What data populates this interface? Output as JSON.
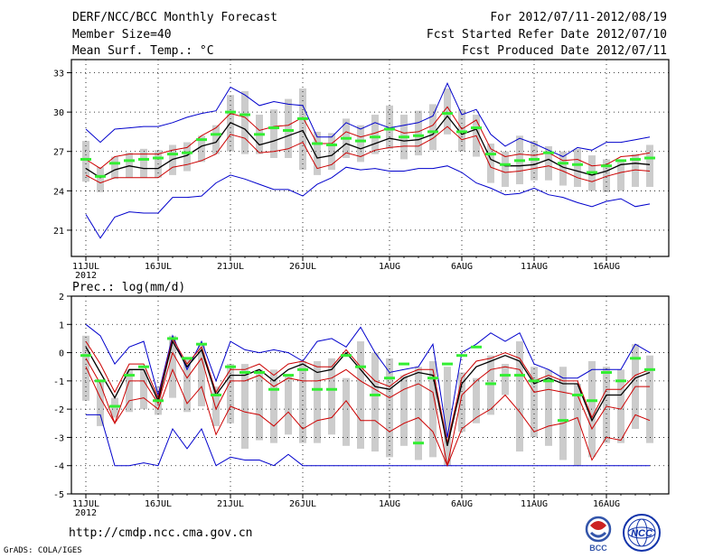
{
  "header": {
    "title": "DERF/NCC/BCC Monthly Forecast",
    "member_size": "Member Size=40",
    "variable": "Mean Surf. Temp.: °C",
    "period": "For 2012/07/11-2012/08/19",
    "started": "Fcst Started Refer Date 2012/07/10",
    "produced": "Fcst Produced Date 2012/07/11"
  },
  "footer": {
    "url": "http://cmdp.ncc.cma.gov.cn",
    "grads": "GrADS: COLA/IGES",
    "logo_bcc": "BCC",
    "logo_ncc": "NCC"
  },
  "colors": {
    "box": "#cccccc",
    "mean": "#33ee33",
    "outer": "#0000cc",
    "inner": "#cc0000",
    "median": "#000000"
  },
  "chart_data": [
    {
      "type": "box",
      "title": "Mean Surf. Temp.: °C",
      "x_tick_labels": [
        "11JUL",
        "16JUL",
        "21JUL",
        "26JUL",
        "1AUG",
        "6AUG",
        "11AUG",
        "16AUG"
      ],
      "x_tick_days": [
        1,
        6,
        11,
        16,
        22,
        27,
        32,
        37
      ],
      "x_year_label": "2012",
      "y_ticks": [
        21,
        24,
        27,
        30,
        33
      ],
      "ylim": [
        19,
        34
      ],
      "days": 40,
      "box_top": [
        27.8,
        25.8,
        26.6,
        26.9,
        27.2,
        27.1,
        27.5,
        27.7,
        28.2,
        29.0,
        31.3,
        31.6,
        29.8,
        30.2,
        31.0,
        31.8,
        28.5,
        28.4,
        29.5,
        29.0,
        29.8,
        30.5,
        29.8,
        30.1,
        30.6,
        31.8,
        30.2,
        29.8,
        27.6,
        27.0,
        28.2,
        27.8,
        27.4,
        27.0,
        27.2,
        26.7,
        26.4,
        26.2,
        26.8,
        27.5
      ],
      "box_bottom": [
        24.7,
        23.9,
        24.9,
        25.0,
        25.0,
        25.0,
        25.2,
        25.5,
        26.2,
        26.8,
        27.0,
        26.8,
        26.8,
        26.5,
        26.5,
        25.6,
        25.2,
        25.6,
        26.5,
        26.2,
        26.8,
        27.2,
        26.4,
        26.7,
        27.1,
        28.3,
        27.0,
        26.6,
        24.6,
        24.3,
        24.5,
        24.8,
        24.8,
        24.4,
        24.3,
        24.0,
        23.9,
        24.0,
        24.3,
        24.3
      ],
      "box_low": [
        24.2,
        23.6,
        24.6,
        24.7,
        24.7,
        24.7,
        24.9,
        25.2,
        25.9,
        26.5,
        26.7,
        26.5,
        26.5,
        26.2,
        26.2,
        25.3,
        24.9,
        25.3,
        26.2,
        25.9,
        26.5,
        26.9,
        26.1,
        26.4,
        26.8,
        28.0,
        26.7,
        26.3,
        24.3,
        24.0,
        24.2,
        24.5,
        24.5,
        24.1,
        24.0,
        23.7,
        23.6,
        23.7,
        24.0,
        24.0
      ],
      "box_high": [
        28.1,
        26.0,
        26.9,
        27.2,
        27.5,
        27.4,
        27.8,
        28.0,
        28.5,
        29.3,
        31.6,
        31.9,
        30.1,
        30.5,
        31.3,
        32.1,
        28.8,
        28.7,
        29.8,
        29.3,
        30.1,
        30.8,
        30.1,
        30.4,
        30.9,
        32.1,
        30.5,
        30.1,
        27.9,
        27.3,
        28.5,
        28.1,
        27.7,
        27.3,
        27.5,
        27.0,
        26.7,
        26.5,
        27.1,
        27.8
      ],
      "series": [
        {
          "name": "max",
          "color_key": "outer",
          "values": [
            28.7,
            27.7,
            28.7,
            28.8,
            28.9,
            28.9,
            29.2,
            29.6,
            29.9,
            30.1,
            31.9,
            31.3,
            30.5,
            30.8,
            30.6,
            30.5,
            28.1,
            28.1,
            29.2,
            28.7,
            29.2,
            28.8,
            29.0,
            29.2,
            29.7,
            32.2,
            29.8,
            30.2,
            28.3,
            27.4,
            28.0,
            27.6,
            27.1,
            26.6,
            27.3,
            27.1,
            27.7,
            27.7,
            27.9,
            28.1
          ]
        },
        {
          "name": "q75",
          "color_key": "inner",
          "values": [
            26.4,
            25.7,
            26.6,
            26.8,
            26.8,
            26.8,
            27.1,
            27.3,
            28.2,
            28.8,
            29.9,
            29.6,
            28.6,
            28.9,
            29.0,
            29.6,
            27.6,
            27.6,
            28.5,
            28.1,
            28.4,
            28.8,
            28.4,
            28.5,
            29.0,
            30.4,
            28.7,
            29.4,
            27.2,
            26.6,
            26.8,
            26.7,
            26.9,
            26.3,
            26.4,
            25.9,
            26.0,
            26.6,
            26.7,
            26.9
          ]
        },
        {
          "name": "median",
          "color_key": "median",
          "values": [
            25.7,
            25.0,
            25.6,
            25.9,
            25.7,
            25.7,
            26.4,
            26.7,
            27.4,
            27.7,
            29.2,
            28.7,
            27.5,
            27.8,
            28.2,
            28.6,
            26.5,
            26.7,
            27.6,
            27.2,
            27.6,
            28.0,
            27.8,
            27.9,
            28.3,
            29.7,
            28.3,
            28.7,
            26.4,
            25.9,
            25.9,
            26.0,
            26.4,
            25.8,
            25.5,
            25.2,
            25.5,
            26.0,
            26.1,
            26.0
          ]
        },
        {
          "name": "q25",
          "color_key": "inner",
          "values": [
            25.2,
            24.6,
            25.0,
            25.0,
            25.0,
            25.0,
            25.8,
            26.0,
            26.3,
            26.8,
            28.3,
            28.0,
            26.9,
            27.0,
            27.2,
            27.7,
            25.7,
            26.0,
            26.9,
            26.6,
            27.1,
            27.3,
            27.4,
            27.4,
            28.0,
            28.9,
            27.9,
            28.2,
            25.8,
            25.4,
            25.5,
            25.7,
            25.9,
            25.5,
            25.0,
            24.7,
            25.1,
            25.4,
            25.6,
            25.5
          ]
        },
        {
          "name": "min",
          "color_key": "outer",
          "values": [
            22.2,
            20.4,
            22.0,
            22.4,
            22.3,
            22.3,
            23.5,
            23.5,
            23.6,
            24.6,
            25.2,
            24.9,
            24.5,
            24.1,
            24.1,
            23.6,
            24.5,
            25.0,
            25.8,
            25.6,
            25.7,
            25.5,
            25.5,
            25.7,
            25.7,
            25.9,
            25.4,
            24.6,
            24.2,
            23.7,
            23.8,
            24.2,
            23.7,
            23.5,
            23.1,
            22.8,
            23.2,
            23.4,
            22.8,
            23.0
          ]
        }
      ],
      "mean_markers": [
        26.4,
        25.1,
        26.1,
        26.3,
        26.4,
        26.5,
        26.8,
        26.9,
        27.9,
        28.3,
        30.0,
        29.8,
        28.3,
        28.8,
        28.6,
        29.5,
        27.6,
        27.5,
        28.0,
        27.8,
        28.1,
        28.7,
        28.1,
        28.2,
        28.5,
        29.9,
        28.5,
        28.8,
        26.8,
        26.0,
        26.3,
        26.4,
        26.9,
        26.1,
        26.0,
        25.4,
        25.9,
        26.3,
        26.4,
        26.5
      ]
    },
    {
      "type": "box",
      "title": "Prec.: log(mm/d)",
      "x_tick_labels": [
        "11JUL",
        "16JUL",
        "21JUL",
        "26JUL",
        "1AUG",
        "6AUG",
        "11AUG",
        "16AUG"
      ],
      "x_tick_days": [
        1,
        6,
        11,
        16,
        22,
        27,
        32,
        37
      ],
      "x_year_label": "2012",
      "y_ticks": [
        -5,
        -4,
        -3,
        -2,
        -1,
        0,
        1,
        2
      ],
      "ylim": [
        -5,
        2
      ],
      "days": 40,
      "box_top": [
        0.6,
        -1.0,
        -1.6,
        -0.6,
        -0.6,
        -1.2,
        0.6,
        -0.2,
        0.3,
        -1.2,
        -0.4,
        -0.4,
        -0.6,
        -0.6,
        -0.8,
        -0.3,
        -0.3,
        -0.2,
        -0.9,
        0.4,
        0.0,
        -0.2,
        -0.8,
        -0.5,
        -0.3,
        -0.5,
        -0.7,
        -0.9,
        -0.1,
        -0.4,
        0.4,
        -0.5,
        -0.6,
        -0.5,
        -1.1,
        -0.3,
        -0.5,
        -0.6,
        0.3,
        -0.1
      ],
      "box_bottom": [
        -1.7,
        -2.6,
        -2.3,
        -2.1,
        -2.0,
        -2.2,
        -1.6,
        -2.1,
        -1.9,
        -2.6,
        -2.5,
        -3.4,
        -3.1,
        -3.2,
        -2.9,
        -3.2,
        -3.2,
        -2.9,
        -3.3,
        -3.4,
        -3.5,
        -3.7,
        -3.3,
        -3.8,
        -3.7,
        -4.0,
        -2.8,
        -2.5,
        -2.2,
        -1.5,
        -3.5,
        -3.0,
        -3.3,
        -3.8,
        -4.0,
        -3.7,
        -3.2,
        -3.2,
        -2.7,
        -3.2
      ],
      "series": [
        {
          "name": "max",
          "color_key": "outer",
          "values": [
            1.0,
            0.6,
            -0.4,
            0.2,
            0.4,
            -1.5,
            0.6,
            -0.6,
            0.4,
            -1.0,
            0.4,
            0.1,
            0.0,
            0.1,
            0.0,
            -0.3,
            0.4,
            0.5,
            0.2,
            0.9,
            0.0,
            -0.7,
            -0.6,
            -0.5,
            0.3,
            -3.0,
            0.0,
            0.3,
            0.7,
            0.4,
            0.7,
            -0.4,
            -0.6,
            -0.9,
            -0.9,
            -0.6,
            -0.6,
            -0.6,
            0.3,
            0.0
          ]
        },
        {
          "name": "q75",
          "color_key": "inner",
          "values": [
            0.4,
            -0.4,
            -1.4,
            -0.4,
            -0.4,
            -1.6,
            0.5,
            -0.4,
            0.2,
            -1.4,
            -0.6,
            -0.6,
            -0.4,
            -0.8,
            -0.4,
            -0.3,
            -0.5,
            -0.5,
            0.1,
            -0.5,
            -1.0,
            -1.2,
            -0.8,
            -0.6,
            -0.6,
            -3.2,
            -0.9,
            -0.3,
            -0.2,
            0.0,
            -0.2,
            -1.0,
            -0.8,
            -1.0,
            -1.0,
            -2.3,
            -1.3,
            -1.3,
            -0.8,
            -0.6
          ]
        },
        {
          "name": "median",
          "color_key": "median",
          "values": [
            0.2,
            -0.7,
            -1.6,
            -0.6,
            -0.6,
            -1.7,
            0.4,
            -0.5,
            0.1,
            -1.5,
            -0.8,
            -0.8,
            -0.6,
            -1.0,
            -0.6,
            -0.4,
            -0.7,
            -0.6,
            0.0,
            -0.6,
            -1.2,
            -1.3,
            -0.9,
            -0.7,
            -0.8,
            -3.3,
            -1.1,
            -0.5,
            -0.3,
            -0.1,
            -0.3,
            -1.1,
            -0.9,
            -1.1,
            -1.1,
            -2.4,
            -1.5,
            -1.5,
            -0.9,
            -0.7
          ]
        },
        {
          "name": "q25",
          "color_key": "inner",
          "values": [
            -0.2,
            -1.1,
            -2.5,
            -1.0,
            -1.0,
            -1.8,
            0.0,
            -0.9,
            -0.2,
            -2.0,
            -1.0,
            -1.0,
            -0.8,
            -1.2,
            -0.9,
            -1.0,
            -1.0,
            -0.9,
            -0.6,
            -1.0,
            -1.3,
            -1.6,
            -1.3,
            -1.1,
            -1.4,
            -4.0,
            -1.5,
            -1.0,
            -0.6,
            -0.5,
            -0.6,
            -1.4,
            -1.3,
            -1.4,
            -1.5,
            -2.7,
            -1.9,
            -2.0,
            -1.2,
            -1.2
          ]
        },
        {
          "name": "min",
          "color_key": "outer",
          "values": [
            -2.2,
            -2.2,
            -4.0,
            -4.0,
            -3.9,
            -4.0,
            -2.7,
            -3.4,
            -2.7,
            -4.0,
            -3.7,
            -3.8,
            -3.8,
            -4.0,
            -3.6,
            -4.0,
            -4.0,
            -4.0,
            -4.0,
            -4.0,
            -4.0,
            -4.0,
            -4.0,
            -4.0,
            -4.0,
            -4.0,
            -4.0,
            -4.0,
            -4.0,
            -4.0,
            -4.0,
            -4.0,
            -4.0,
            -4.0,
            -4.0,
            -4.0,
            -4.0,
            -4.0,
            -4.0,
            -4.0
          ]
        },
        {
          "name": "low",
          "color_key": "inner",
          "values": [
            -0.5,
            -1.6,
            -2.5,
            -1.7,
            -1.6,
            -2.0,
            -0.6,
            -1.8,
            -1.2,
            -2.9,
            -1.9,
            -2.1,
            -2.2,
            -2.6,
            -2.1,
            -2.7,
            -2.4,
            -2.3,
            -1.7,
            -2.4,
            -2.4,
            -2.8,
            -2.5,
            -2.3,
            -2.8,
            -4.0,
            -2.7,
            -2.3,
            -2.0,
            -1.5,
            -2.1,
            -2.8,
            -2.6,
            -2.5,
            -2.3,
            -3.8,
            -3.0,
            -3.1,
            -2.2,
            -2.4
          ]
        }
      ],
      "mean_markers": [
        -0.1,
        -1.0,
        -1.9,
        -0.8,
        -0.5,
        -1.7,
        0.5,
        -0.2,
        0.3,
        -1.5,
        -0.5,
        -0.7,
        -0.7,
        -1.3,
        -0.8,
        -0.6,
        -1.3,
        -1.3,
        -0.1,
        -0.5,
        -1.5,
        -0.9,
        -0.4,
        -3.2,
        -0.9,
        -0.4,
        -0.1,
        0.2,
        -1.1,
        -0.8,
        -0.8,
        -1.0,
        -1.0,
        -2.4,
        -1.5,
        -1.7,
        -0.7,
        -1.0,
        -0.2,
        -0.6
      ]
    }
  ]
}
